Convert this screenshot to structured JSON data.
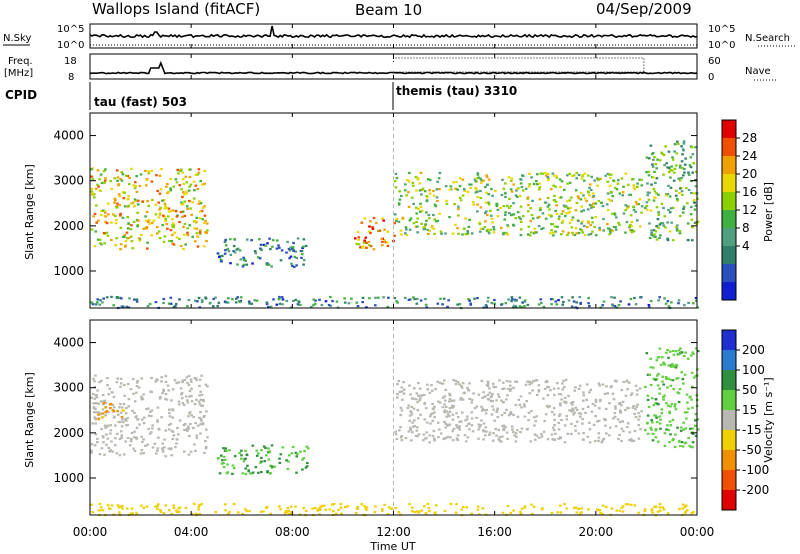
{
  "header": {
    "title": "Wallops Island (fitACF)",
    "beam": "Beam 10",
    "date": "04/Sep/2009"
  },
  "top_panels": {
    "nsky_label": "N.Sky",
    "nsky_ticks": [
      "10^5",
      "10^0"
    ],
    "nsearch_label": "N.Search",
    "nsearch_ticks": [
      "10^5",
      "10^0"
    ],
    "freq_label_1": "Freq.",
    "freq_label_2": "[MHz]",
    "freq_ticks": [
      "18",
      "8"
    ],
    "nave_label": "Nave",
    "nave_ticks": [
      "60",
      "0"
    ],
    "cpid_label": "CPID",
    "cpid_modes": [
      {
        "label": "tau (fast) 503"
      },
      {
        "label": "themis (tau) 3310"
      }
    ]
  },
  "power_panel": {
    "ylabel": "Slant Range [km]",
    "yticks": [
      "4000",
      "3000",
      "2000",
      "1000"
    ],
    "colorbar_label": "Power [dB]",
    "colorbar_ticks": [
      "28",
      "24",
      "20",
      "16",
      "12",
      "8",
      "4"
    ],
    "colorbar_colors": [
      "#e00000",
      "#f05000",
      "#f0a000",
      "#e8d800",
      "#8cd000",
      "#40b040",
      "#50a080",
      "#2f7f6a",
      "#2a50c0",
      "#1020d0"
    ]
  },
  "velocity_panel": {
    "ylabel": "Slant Range [km]",
    "yticks": [
      "4000",
      "3000",
      "2000",
      "1000"
    ],
    "colorbar_label": "Velocity [m s⁻¹]",
    "colorbar_ticks": [
      "200",
      "100",
      "50",
      "15",
      "-15",
      "-50",
      "-100",
      "-200"
    ],
    "colorbar_colors": [
      "#2030d0",
      "#2a7ad0",
      "#309040",
      "#60d040",
      "#b8b8b0",
      "#f0d000",
      "#f09000",
      "#f05000",
      "#e00000"
    ]
  },
  "x_axis": {
    "ticks": [
      "00:00",
      "04:00",
      "08:00",
      "12:00",
      "16:00",
      "20:00",
      "00:00"
    ],
    "label": "Time UT"
  },
  "chart_data": {
    "type": "heatmap",
    "title": "Wallops Island (fitACF)",
    "xlabel": "Time UT",
    "ylabel": "Slant Range [km]",
    "x_range_hours": [
      0,
      24
    ],
    "y_range_km": [
      180,
      4500
    ],
    "mode_change_hour": 12,
    "series": [
      {
        "name": "Power [dB]",
        "echo_regions": [
          {
            "t": [
              0.0,
              4.6
            ],
            "range_km": [
              1500,
              3300
            ],
            "level_db": 20
          },
          {
            "t": [
              5.0,
              8.6
            ],
            "range_km": [
              1100,
              1750
            ],
            "level_db": 8
          },
          {
            "t": [
              10.4,
              12.0
            ],
            "range_km": [
              1500,
              2200
            ],
            "level_db": 24
          },
          {
            "t": [
              12.0,
              21.8
            ],
            "range_km": [
              1800,
              3200
            ],
            "level_db": 16
          },
          {
            "t": [
              21.9,
              24.0
            ],
            "range_km": [
              1700,
              3900
            ],
            "level_db": 12
          },
          {
            "t": [
              0.0,
              24.0
            ],
            "range_km": [
              200,
              450
            ],
            "level_db": 8
          }
        ]
      },
      {
        "name": "Velocity [m s-1]",
        "echo_regions": [
          {
            "t": [
              0.0,
              4.6
            ],
            "range_km": [
              1500,
              3300
            ],
            "value": 0
          },
          {
            "t": [
              0.2,
              1.3
            ],
            "range_km": [
              2300,
              2700
            ],
            "value": -60
          },
          {
            "t": [
              5.0,
              8.6
            ],
            "range_km": [
              1100,
              1750
            ],
            "value": 50
          },
          {
            "t": [
              12.0,
              21.8
            ],
            "range_km": [
              1800,
              3200
            ],
            "value": 0
          },
          {
            "t": [
              21.9,
              24.0
            ],
            "range_km": [
              1700,
              3900
            ],
            "value": 40
          },
          {
            "t": [
              0.0,
              24.0
            ],
            "range_km": [
              200,
              450
            ],
            "value": -30
          }
        ]
      }
    ]
  }
}
